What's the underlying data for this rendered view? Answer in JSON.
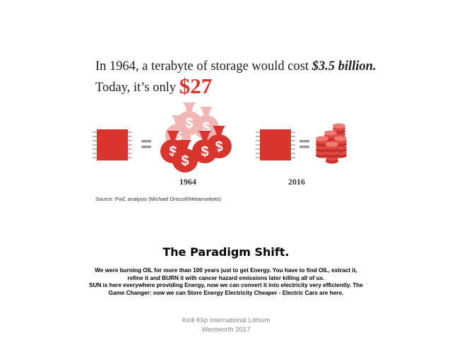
{
  "infographic": {
    "headline": {
      "line1_text": "In 1964, a terabyte of storage would cost ",
      "line1_emphasis": "$3.5 billion.",
      "line2_text": "Today, it’s only ",
      "line2_price": "$27"
    },
    "labels": [
      "1964",
      "2016"
    ],
    "source": "Source: PwC analysis (Michael Driscoll/Metamarkets)"
  },
  "article": {
    "title": "The Paradigm Shift.",
    "paragraphs": [
      "We were burning OIL for more than 100 years just  to get Energy. You have to find OIL, extract it, refine it and BURN it with cancer hazard emissions later killing all of us.",
      "SUN is here everywhere providing Energy, now we can convert it into electricity very efficiently. The Game Changer: now we can Store Energy Electricity Cheaper - Electric Cars are here."
    ]
  },
  "footer": {
    "lines": [
      "Kirill Klip International Lithium",
      "Wentworth 2017"
    ]
  }
}
